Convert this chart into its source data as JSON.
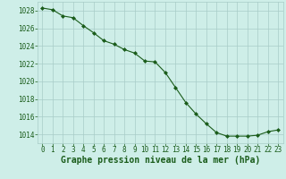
{
  "x": [
    0,
    1,
    2,
    3,
    4,
    5,
    6,
    7,
    8,
    9,
    10,
    11,
    12,
    13,
    14,
    15,
    16,
    17,
    18,
    19,
    20,
    21,
    22,
    23
  ],
  "y": [
    1028.3,
    1028.1,
    1027.4,
    1027.2,
    1026.3,
    1025.5,
    1024.6,
    1024.2,
    1023.6,
    1023.2,
    1022.3,
    1022.2,
    1021.0,
    1019.3,
    1017.6,
    1016.3,
    1015.2,
    1014.2,
    1013.8,
    1013.8,
    1013.8,
    1013.9,
    1014.3,
    1014.5
  ],
  "xlim": [
    -0.5,
    23.5
  ],
  "ylim": [
    1013.0,
    1029.0
  ],
  "yticks": [
    1014,
    1016,
    1018,
    1020,
    1022,
    1024,
    1026,
    1028
  ],
  "xticks": [
    0,
    1,
    2,
    3,
    4,
    5,
    6,
    7,
    8,
    9,
    10,
    11,
    12,
    13,
    14,
    15,
    16,
    17,
    18,
    19,
    20,
    21,
    22,
    23
  ],
  "line_color": "#1a5c1a",
  "marker": "D",
  "marker_size": 2.0,
  "bg_color": "#ceeee8",
  "grid_color": "#a8ccc8",
  "xlabel": "Graphe pression niveau de la mer (hPa)",
  "xlabel_color": "#1a5c1a",
  "tick_color": "#1a5c1a",
  "label_fontsize": 5.5,
  "xlabel_fontsize": 7.0
}
